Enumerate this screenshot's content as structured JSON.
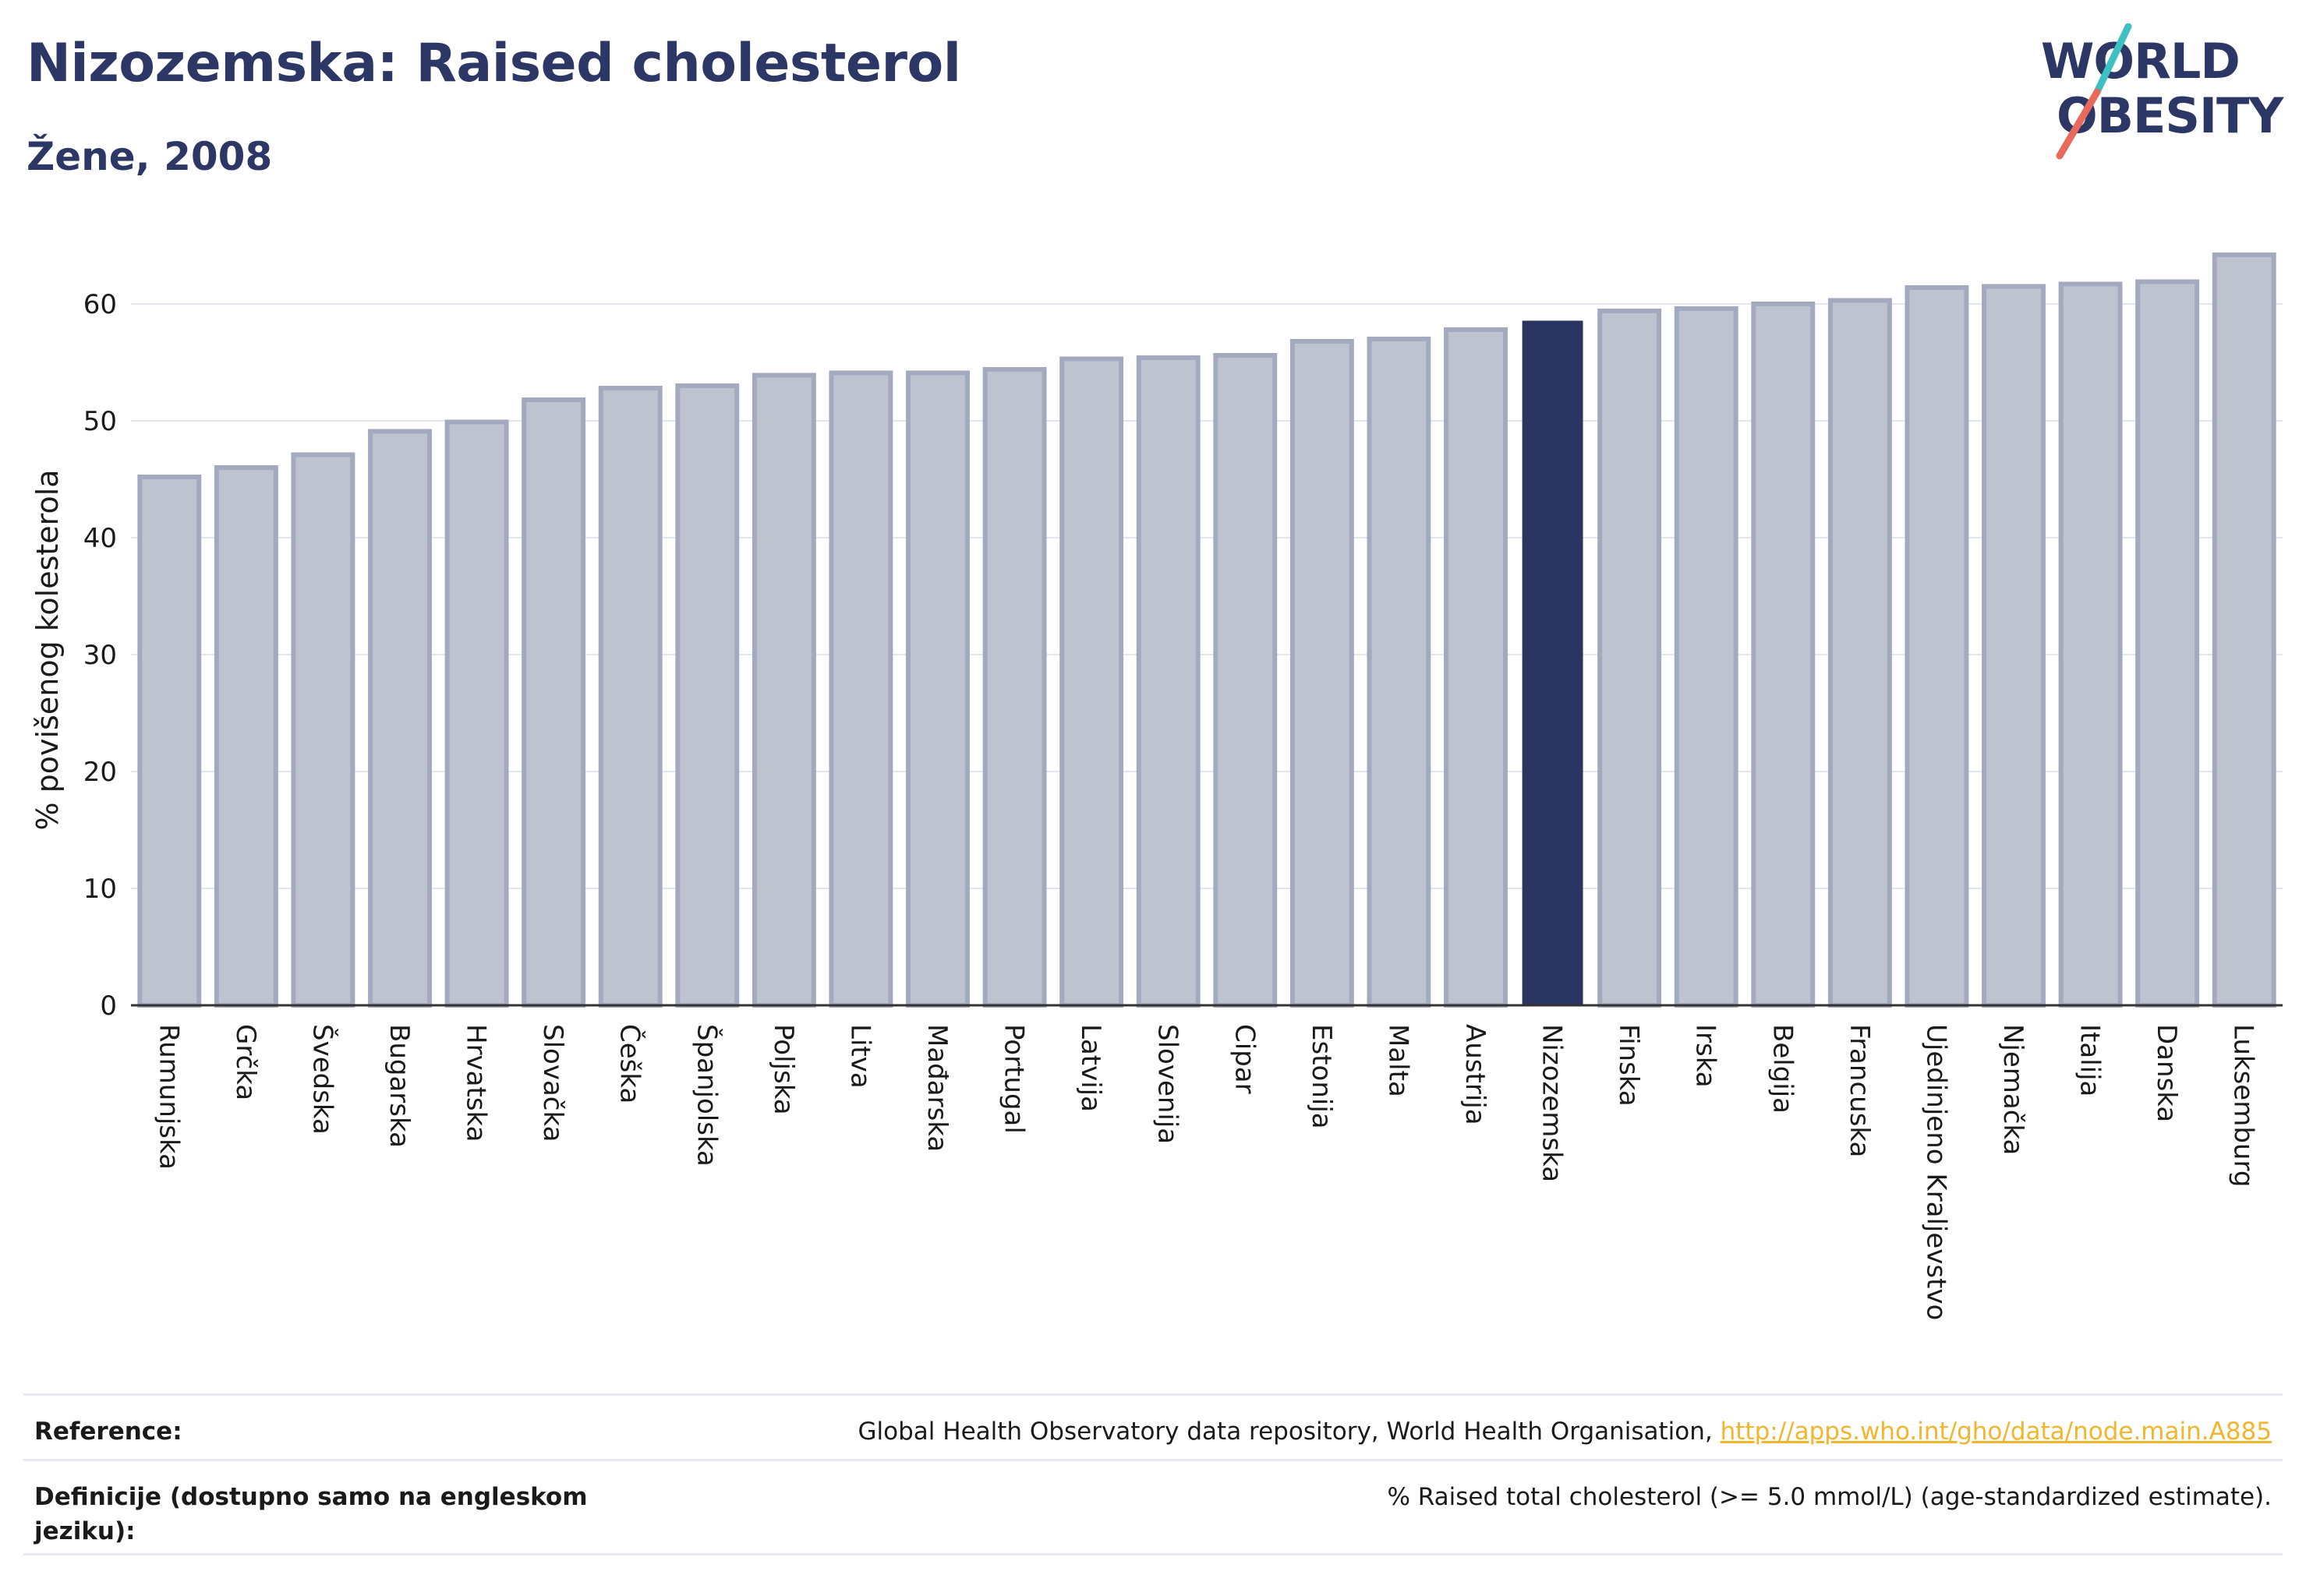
{
  "header": {
    "title": "Nizozemska: Raised cholesterol",
    "subtitle": "Žene, 2008"
  },
  "logo": {
    "line1": "WORLD",
    "line2": "OBESITY",
    "colors": {
      "text": "#2c3765",
      "slash_top": "#3cc0c2",
      "slash_bottom": "#e96a5b"
    }
  },
  "colors": {
    "bar": "#bfc3d0",
    "bar_border": "#a3a9bf",
    "highlight": "#2a3460",
    "grid": "#e4e6ef",
    "axis": "#333333"
  },
  "chart_data": {
    "type": "bar",
    "ylabel": "% povišenog kolesterola",
    "xlabel": "",
    "ylim": [
      0,
      65
    ],
    "yticks": [
      0,
      10,
      20,
      30,
      40,
      50,
      60
    ],
    "grid": true,
    "highlight": "Nizozemska",
    "categories": [
      "Rumunjska",
      "Grčka",
      "Švedska",
      "Bugarska",
      "Hrvatska",
      "Slovačka",
      "Češka",
      "Španjolska",
      "Poljska",
      "Litva",
      "Mađarska",
      "Portugal",
      "Latvija",
      "Slovenija",
      "Cipar",
      "Estonija",
      "Malta",
      "Austrija",
      "Nizozemska",
      "Finska",
      "Irska",
      "Belgija",
      "Francuska",
      "Ujedinjeno Kraljevstvo",
      "Njemačka",
      "Italija",
      "Danska",
      "Luksemburg"
    ],
    "values": [
      45.2,
      46.0,
      47.1,
      49.1,
      49.9,
      51.8,
      52.8,
      53.0,
      53.9,
      54.1,
      54.1,
      54.4,
      55.3,
      55.4,
      55.6,
      56.8,
      57.0,
      57.8,
      58.5,
      59.4,
      59.6,
      60.0,
      60.3,
      61.4,
      61.5,
      61.7,
      61.9,
      64.2
    ]
  },
  "references": {
    "reference_label": "Reference:",
    "reference_text": "Global Health Observatory data repository, World Health Organisation,",
    "reference_link": "http://apps.who.int/gho/data/node.main.A885",
    "definition_label": "Definicije (dostupno samo na engleskom jeziku):",
    "definition_text": "% Raised total cholesterol (>= 5.0 mmol/L) (age-standardized estimate)."
  }
}
